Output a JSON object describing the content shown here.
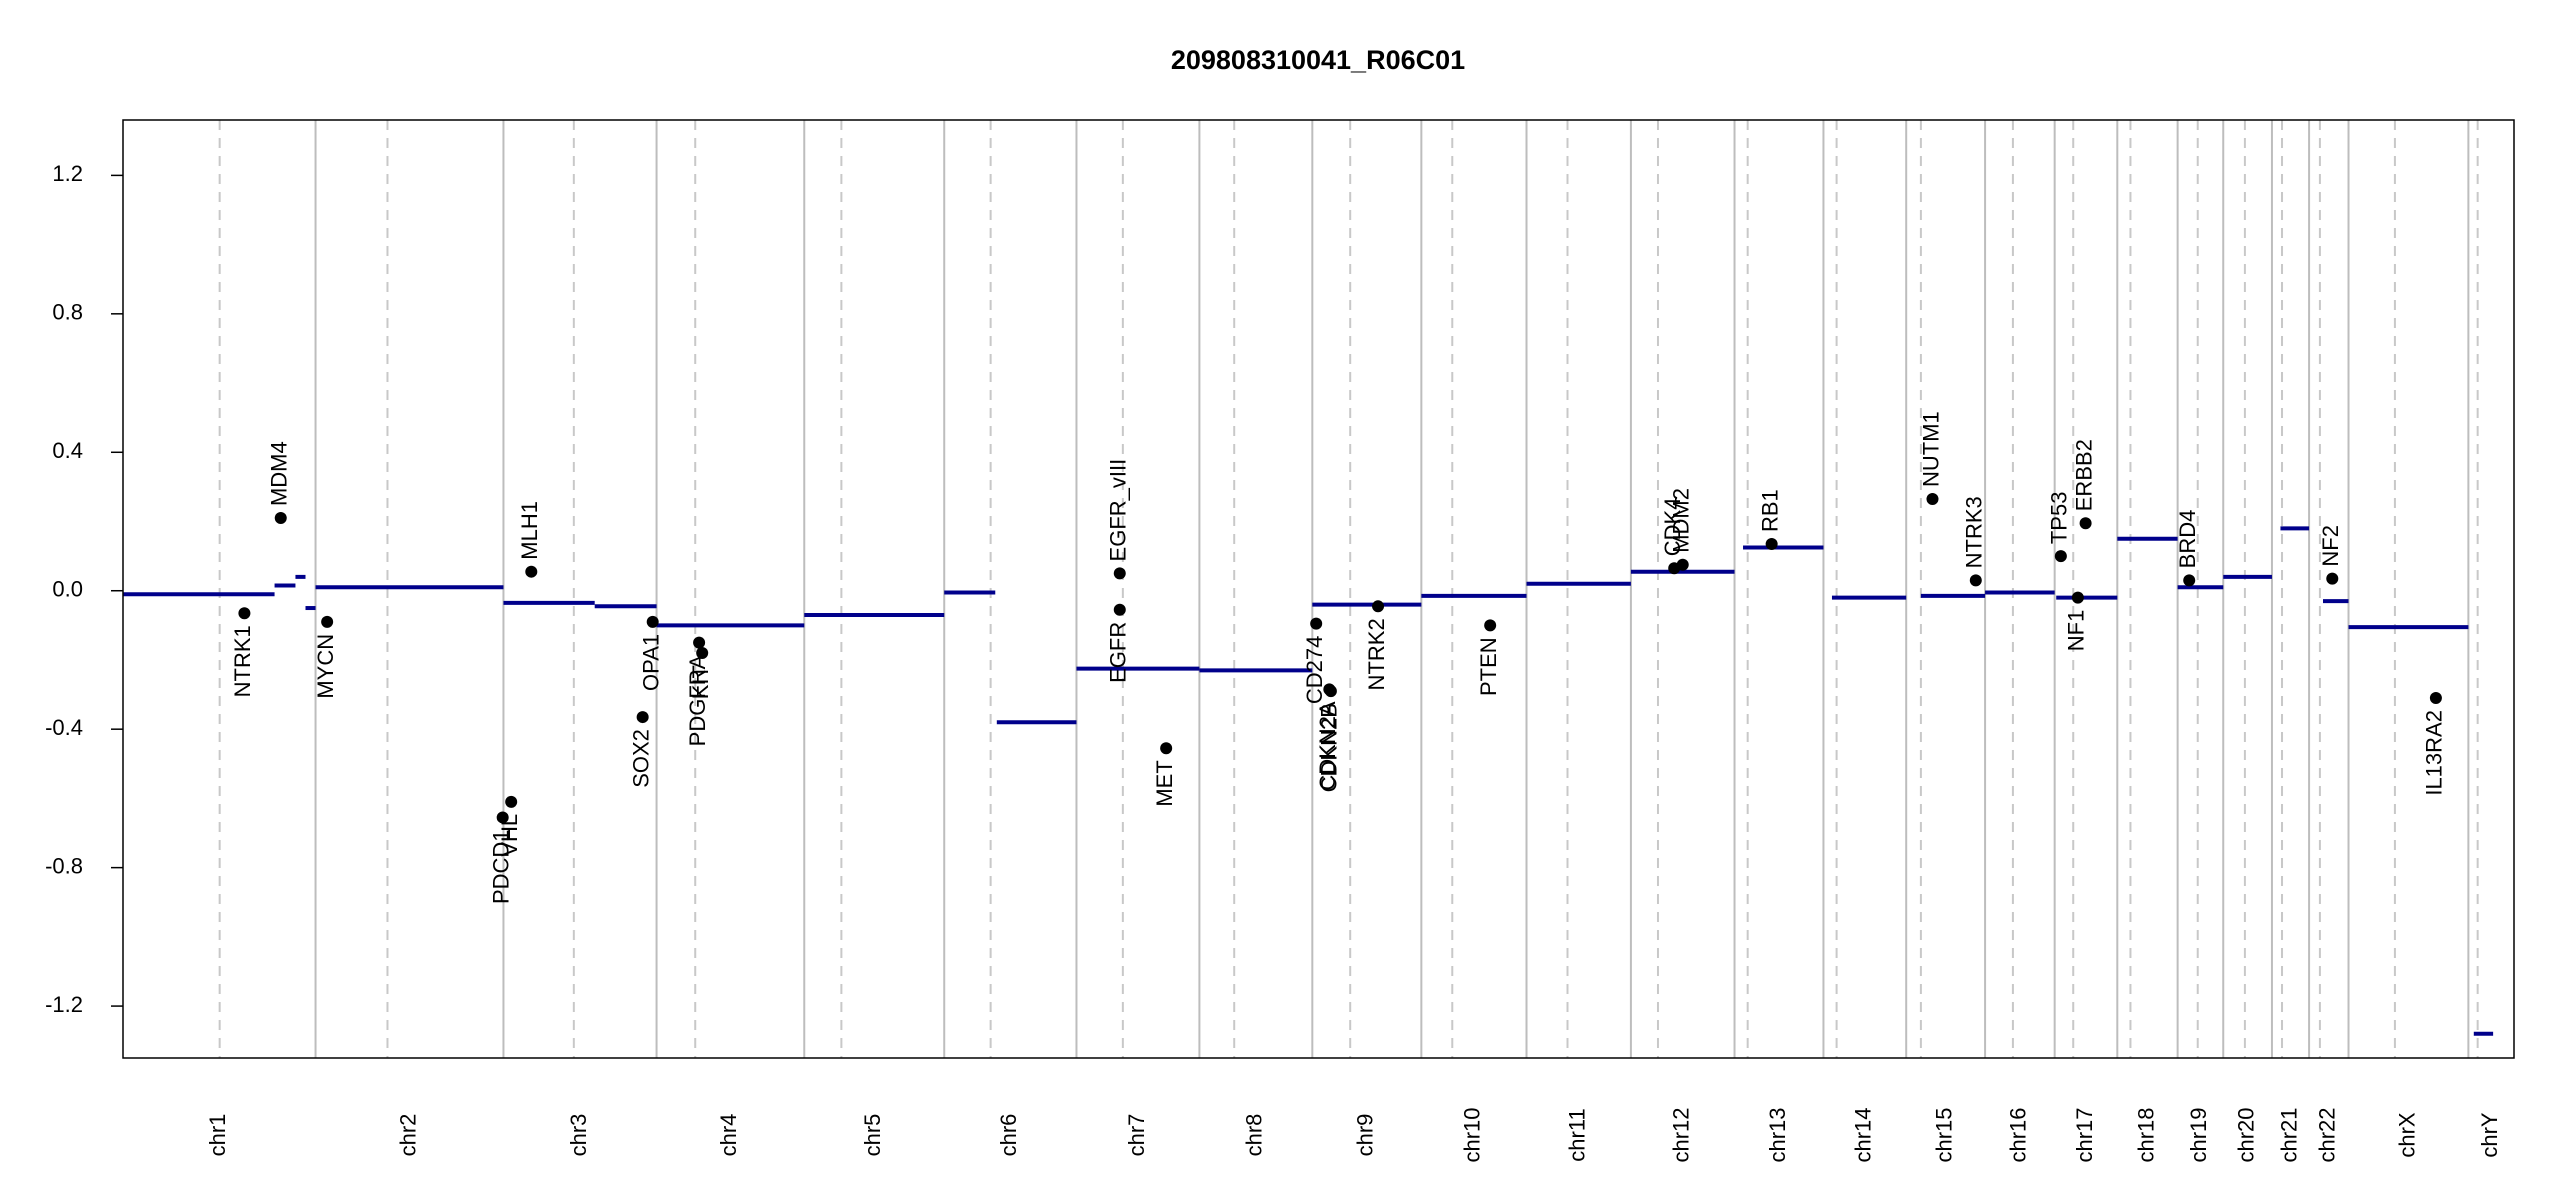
{
  "chart_data": {
    "type": "copy-number",
    "title": "209808310041_R06C01",
    "xlim": [
      0,
      3092
    ],
    "ylim": [
      -1.35,
      1.36
    ],
    "yticks": [
      -1.2,
      -0.8,
      -0.4,
      {
        "value": 0,
        "label": "0.0"
      },
      0.4,
      0.8,
      1.2
    ],
    "segment_color": "#00008b",
    "gene_color": "#000000",
    "chromosomes": [
      {
        "name": "chr1",
        "start": 0,
        "end": 249,
        "centromere": 125
      },
      {
        "name": "chr2",
        "start": 249,
        "end": 492,
        "centromere": 342
      },
      {
        "name": "chr3",
        "start": 492,
        "end": 690,
        "centromere": 583
      },
      {
        "name": "chr4",
        "start": 690,
        "end": 881,
        "centromere": 740
      },
      {
        "name": "chr5",
        "start": 881,
        "end": 1062,
        "centromere": 929
      },
      {
        "name": "chr6",
        "start": 1062,
        "end": 1233,
        "centromere": 1122
      },
      {
        "name": "chr7",
        "start": 1233,
        "end": 1392,
        "centromere": 1293
      },
      {
        "name": "chr8",
        "start": 1392,
        "end": 1538,
        "centromere": 1437
      },
      {
        "name": "chr9",
        "start": 1538,
        "end": 1679,
        "centromere": 1587
      },
      {
        "name": "chr10",
        "start": 1679,
        "end": 1815,
        "centromere": 1719
      },
      {
        "name": "chr11",
        "start": 1815,
        "end": 1950,
        "centromere": 1868
      },
      {
        "name": "chr12",
        "start": 1950,
        "end": 2084,
        "centromere": 1985
      },
      {
        "name": "chr13",
        "start": 2084,
        "end": 2199,
        "centromere": 2101
      },
      {
        "name": "chr14",
        "start": 2199,
        "end": 2306,
        "centromere": 2216
      },
      {
        "name": "chr15",
        "start": 2306,
        "end": 2408,
        "centromere": 2325
      },
      {
        "name": "chr16",
        "start": 2408,
        "end": 2498,
        "centromere": 2444
      },
      {
        "name": "chr17",
        "start": 2498,
        "end": 2579,
        "centromere": 2522
      },
      {
        "name": "chr18",
        "start": 2579,
        "end": 2657,
        "centromere": 2596
      },
      {
        "name": "chr19",
        "start": 2657,
        "end": 2716,
        "centromere": 2683
      },
      {
        "name": "chr20",
        "start": 2716,
        "end": 2779,
        "centromere": 2744
      },
      {
        "name": "chr21",
        "start": 2779,
        "end": 2827,
        "centromere": 2792
      },
      {
        "name": "chr22",
        "start": 2827,
        "end": 2878,
        "centromere": 2841
      },
      {
        "name": "chrX",
        "start": 2878,
        "end": 3033,
        "centromere": 2938
      },
      {
        "name": "chrY",
        "start": 3033,
        "end": 3092,
        "centromere": 3045
      }
    ],
    "segments": [
      {
        "x": [
          0,
          196
        ],
        "value": -0.01
      },
      {
        "x": [
          196,
          223
        ],
        "value": 0.015
      },
      {
        "x": [
          223,
          236
        ],
        "value": 0.04
      },
      {
        "x": [
          236,
          249
        ],
        "value": -0.05
      },
      {
        "x": [
          249,
          492
        ],
        "value": 0.01
      },
      {
        "x": [
          492,
          610
        ],
        "value": -0.035
      },
      {
        "x": [
          610,
          690
        ],
        "value": -0.045
      },
      {
        "x": [
          690,
          881
        ],
        "value": -0.1
      },
      {
        "x": [
          881,
          1062
        ],
        "value": -0.07
      },
      {
        "x": [
          1062,
          1128
        ],
        "value": -0.005
      },
      {
        "x": [
          1130,
          1233
        ],
        "value": -0.38
      },
      {
        "x": [
          1233,
          1392
        ],
        "value": -0.225
      },
      {
        "x": [
          1392,
          1538
        ],
        "value": -0.23
      },
      {
        "x": [
          1538,
          1679
        ],
        "value": -0.04
      },
      {
        "x": [
          1679,
          1815
        ],
        "value": -0.015
      },
      {
        "x": [
          1815,
          1950
        ],
        "value": 0.02
      },
      {
        "x": [
          1950,
          2084
        ],
        "value": 0.055
      },
      {
        "x": [
          2095,
          2199
        ],
        "value": 0.125
      },
      {
        "x": [
          2210,
          2306
        ],
        "value": -0.02
      },
      {
        "x": [
          2325,
          2408
        ],
        "value": -0.015
      },
      {
        "x": [
          2408,
          2498
        ],
        "value": -0.005
      },
      {
        "x": [
          2500,
          2579
        ],
        "value": -0.02
      },
      {
        "x": [
          2579,
          2657
        ],
        "value": 0.15
      },
      {
        "x": [
          2657,
          2716
        ],
        "value": 0.01
      },
      {
        "x": [
          2716,
          2779
        ],
        "value": 0.04
      },
      {
        "x": [
          2790,
          2827
        ],
        "value": 0.18
      },
      {
        "x": [
          2845,
          2878
        ],
        "value": -0.03
      },
      {
        "x": [
          2878,
          3033
        ],
        "value": -0.105
      },
      {
        "x": [
          3040,
          3065
        ],
        "value": -1.28
      }
    ],
    "genes": [
      {
        "name": "NTRK1",
        "x": 157,
        "value": -0.065
      },
      {
        "name": "MDM4",
        "x": 204,
        "value": 0.21
      },
      {
        "name": "MYCN",
        "x": 264,
        "value": -0.09
      },
      {
        "name": "PDCD1",
        "x": 491,
        "value": -0.655
      },
      {
        "name": "VHL",
        "x": 502,
        "value": -0.61
      },
      {
        "name": "MLH1",
        "x": 528,
        "value": 0.055
      },
      {
        "name": "SOX2",
        "x": 672,
        "value": -0.365
      },
      {
        "name": "OPA1",
        "x": 685,
        "value": -0.09
      },
      {
        "name": "PDGFRA",
        "x": 745,
        "value": -0.15
      },
      {
        "name": "KIT",
        "x": 749,
        "value": -0.18
      },
      {
        "name": "EGFR_vIII",
        "x": 1289,
        "value": 0.05
      },
      {
        "name": "EGFR",
        "x": 1289,
        "value": -0.055
      },
      {
        "name": "MET",
        "x": 1349,
        "value": -0.455
      },
      {
        "name": "CD274",
        "x": 1543,
        "value": -0.095
      },
      {
        "name": "CDKN2A",
        "x": 1560,
        "value": -0.285
      },
      {
        "name": "CDKN2B",
        "x": 1562,
        "value": -0.29
      },
      {
        "name": "NTRK2",
        "x": 1623,
        "value": -0.045
      },
      {
        "name": "PTEN",
        "x": 1768,
        "value": -0.1
      },
      {
        "name": "CDK4",
        "x": 2006,
        "value": 0.065
      },
      {
        "name": "MDM2",
        "x": 2017,
        "value": 0.075
      },
      {
        "name": "RB1",
        "x": 2132,
        "value": 0.135
      },
      {
        "name": "NUTM1",
        "x": 2340,
        "value": 0.265
      },
      {
        "name": "NTRK3",
        "x": 2396,
        "value": 0.03
      },
      {
        "name": "TP53",
        "x": 2506,
        "value": 0.1
      },
      {
        "name": "ERBB2",
        "x": 2538,
        "value": 0.195
      },
      {
        "name": "NF1",
        "x": 2528,
        "value": -0.02
      },
      {
        "name": "BRD4",
        "x": 2672,
        "value": 0.03
      },
      {
        "name": "NF2",
        "x": 2857,
        "value": 0.035
      },
      {
        "name": "IL13RA2",
        "x": 2991,
        "value": -0.31
      }
    ]
  }
}
